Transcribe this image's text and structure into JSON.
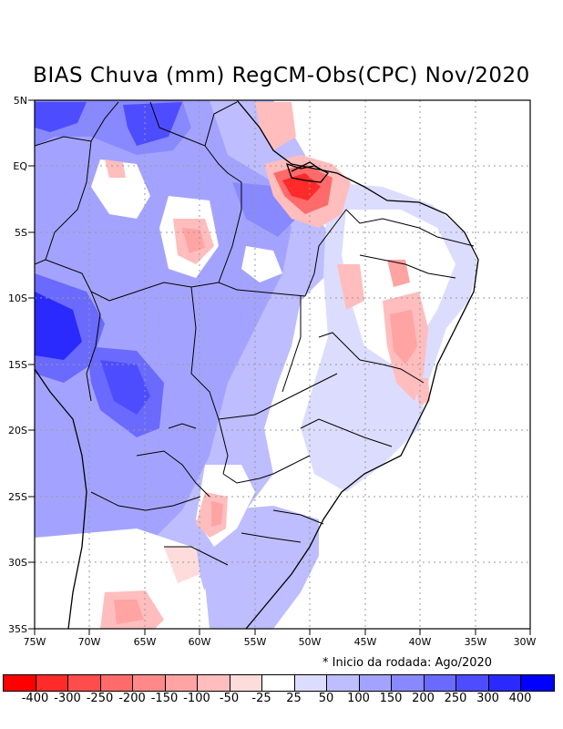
{
  "title": "BIAS Chuva (mm) RegCM-Obs(CPC) Nov/2020",
  "note": "* Inicio da rodada: Ago/2020",
  "lat_labels": [
    "5N",
    "EQ",
    "5S",
    "10S",
    "15S",
    "20S",
    "25S",
    "30S",
    "35S"
  ],
  "lon_labels": [
    "75W",
    "70W",
    "65W",
    "60W",
    "55W",
    "50W",
    "45W",
    "40W",
    "35W",
    "30W"
  ],
  "legend": {
    "colors": [
      "#ff0000",
      "#ff2a2a",
      "#ff4d4d",
      "#ff6a6a",
      "#ff8888",
      "#ffa3a3",
      "#ffbdbd",
      "#ffdcdc",
      "#ffffff",
      "#dcdcff",
      "#bdbdff",
      "#a3a3ff",
      "#8888ff",
      "#6a6aff",
      "#4d4dff",
      "#2a2aff",
      "#0000ff"
    ],
    "labels": [
      "-400",
      "-300",
      "-250",
      "-200",
      "-150",
      "-100",
      "-50",
      "-25",
      "25",
      "50",
      "100",
      "150",
      "200",
      "250",
      "300",
      "400"
    ]
  }
}
